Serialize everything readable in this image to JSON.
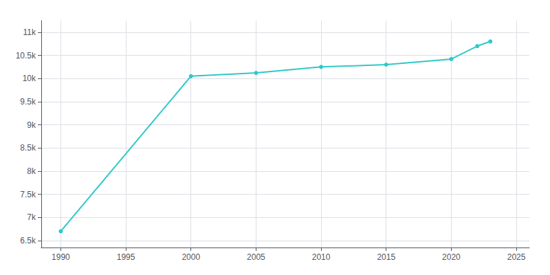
{
  "chart_data": {
    "type": "line",
    "x": [
      1990,
      2000,
      2005,
      2010,
      2015,
      2020,
      2022,
      2023
    ],
    "values": [
      6700,
      10050,
      10120,
      10250,
      10300,
      10420,
      10700,
      10800
    ],
    "color": "#2dc9c9",
    "marker": "circle",
    "xlim": [
      1988.5,
      2026
    ],
    "xticks": [
      1990,
      1995,
      2000,
      2005,
      2010,
      2015,
      2020,
      2025
    ],
    "ylim": [
      6350,
      11250
    ],
    "yticks": [
      {
        "value": 6500,
        "label": "6.5k"
      },
      {
        "value": 7000,
        "label": "7k"
      },
      {
        "value": 7500,
        "label": "7.5k"
      },
      {
        "value": 8000,
        "label": "8k"
      },
      {
        "value": 8500,
        "label": "8.5k"
      },
      {
        "value": 9000,
        "label": "9k"
      },
      {
        "value": 9500,
        "label": "9.5k"
      },
      {
        "value": 10000,
        "label": "10k"
      },
      {
        "value": 10500,
        "label": "10.5k"
      },
      {
        "value": 11000,
        "label": "11k"
      }
    ],
    "grid": true
  }
}
